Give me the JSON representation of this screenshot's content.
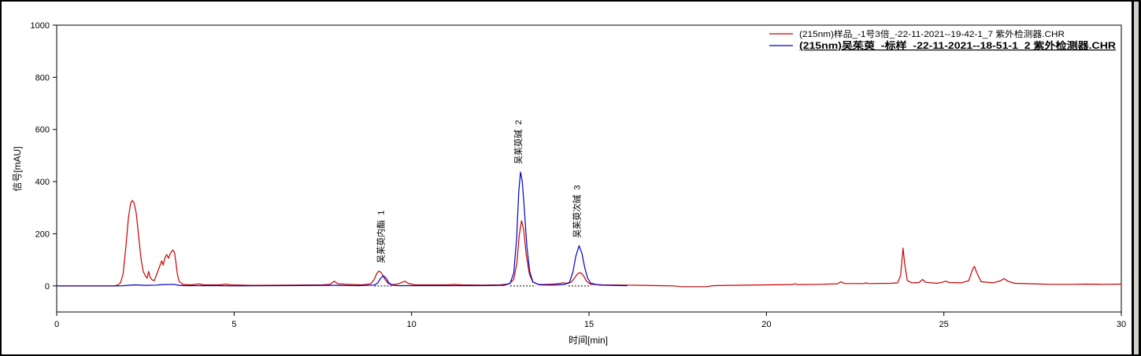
{
  "chart_data": {
    "type": "line",
    "xlabel": "时间[min]",
    "ylabel": "信号[mAU]",
    "xlim": [
      0,
      30
    ],
    "ylim": [
      -100,
      1000
    ],
    "xticks": [
      0,
      5,
      10,
      15,
      20,
      25,
      30
    ],
    "yticks": [
      1000,
      800,
      600,
      400,
      200,
      0
    ],
    "grid": false,
    "legend_position": "top-right",
    "series": [
      {
        "name": "(215nm)样品_-1号3倍_-22-11-2021--19-42-1_7 紫外检测器.CHR",
        "color": "#c80000",
        "points": [
          [
            0,
            0
          ],
          [
            1.0,
            0
          ],
          [
            1.6,
            0
          ],
          [
            1.72,
            3
          ],
          [
            1.8,
            12
          ],
          [
            1.87,
            45
          ],
          [
            1.95,
            150
          ],
          [
            2.02,
            260
          ],
          [
            2.08,
            315
          ],
          [
            2.13,
            328
          ],
          [
            2.18,
            318
          ],
          [
            2.24,
            280
          ],
          [
            2.31,
            190
          ],
          [
            2.38,
            100
          ],
          [
            2.44,
            55
          ],
          [
            2.5,
            38
          ],
          [
            2.55,
            30
          ],
          [
            2.59,
            56
          ],
          [
            2.63,
            35
          ],
          [
            2.68,
            24
          ],
          [
            2.75,
            20
          ],
          [
            2.8,
            38
          ],
          [
            2.86,
            60
          ],
          [
            2.92,
            82
          ],
          [
            2.96,
            96
          ],
          [
            3.0,
            80
          ],
          [
            3.05,
            108
          ],
          [
            3.1,
            120
          ],
          [
            3.15,
            106
          ],
          [
            3.2,
            124
          ],
          [
            3.27,
            138
          ],
          [
            3.32,
            128
          ],
          [
            3.36,
            90
          ],
          [
            3.4,
            45
          ],
          [
            3.45,
            18
          ],
          [
            3.55,
            6
          ],
          [
            3.8,
            4
          ],
          [
            4.0,
            8
          ],
          [
            4.15,
            4
          ],
          [
            4.6,
            4
          ],
          [
            4.75,
            7
          ],
          [
            4.9,
            4
          ],
          [
            5.5,
            2
          ],
          [
            6.5,
            3
          ],
          [
            7.5,
            4
          ],
          [
            7.7,
            6
          ],
          [
            7.82,
            18
          ],
          [
            7.92,
            8
          ],
          [
            8.2,
            6
          ],
          [
            8.6,
            4
          ],
          [
            8.85,
            8
          ],
          [
            8.95,
            25
          ],
          [
            9.02,
            48
          ],
          [
            9.08,
            57
          ],
          [
            9.15,
            50
          ],
          [
            9.25,
            25
          ],
          [
            9.35,
            8
          ],
          [
            9.5,
            5
          ],
          [
            9.65,
            9
          ],
          [
            9.75,
            15
          ],
          [
            9.82,
            18
          ],
          [
            9.9,
            10
          ],
          [
            10.1,
            4
          ],
          [
            11.0,
            4
          ],
          [
            11.2,
            6
          ],
          [
            11.4,
            4
          ],
          [
            12.0,
            3
          ],
          [
            12.5,
            4
          ],
          [
            12.75,
            8
          ],
          [
            12.88,
            25
          ],
          [
            12.97,
            90
          ],
          [
            13.03,
            190
          ],
          [
            13.1,
            250
          ],
          [
            13.16,
            215
          ],
          [
            13.23,
            120
          ],
          [
            13.32,
            45
          ],
          [
            13.42,
            14
          ],
          [
            13.6,
            5
          ],
          [
            13.8,
            6
          ],
          [
            14.0,
            7
          ],
          [
            14.2,
            10
          ],
          [
            14.28,
            12
          ],
          [
            14.4,
            9
          ],
          [
            14.5,
            15
          ],
          [
            14.6,
            32
          ],
          [
            14.68,
            47
          ],
          [
            14.76,
            51
          ],
          [
            14.84,
            40
          ],
          [
            14.93,
            18
          ],
          [
            15.05,
            6
          ],
          [
            15.4,
            4
          ],
          [
            16.0,
            3
          ],
          [
            16.5,
            2
          ],
          [
            17.0,
            1
          ],
          [
            17.4,
            0
          ],
          [
            17.6,
            -3
          ],
          [
            18.3,
            -3
          ],
          [
            18.5,
            1
          ],
          [
            19.0,
            2
          ],
          [
            20.0,
            4
          ],
          [
            20.7,
            5
          ],
          [
            20.8,
            8
          ],
          [
            20.9,
            5
          ],
          [
            21.5,
            6
          ],
          [
            22.0,
            8
          ],
          [
            22.1,
            16
          ],
          [
            22.2,
            9
          ],
          [
            22.75,
            9
          ],
          [
            22.8,
            12
          ],
          [
            22.85,
            9
          ],
          [
            23.5,
            10
          ],
          [
            23.7,
            12
          ],
          [
            23.78,
            40
          ],
          [
            23.85,
            145
          ],
          [
            23.9,
            80
          ],
          [
            23.97,
            20
          ],
          [
            24.1,
            12
          ],
          [
            24.3,
            13
          ],
          [
            24.4,
            25
          ],
          [
            24.48,
            14
          ],
          [
            24.8,
            10
          ],
          [
            24.95,
            14
          ],
          [
            25.05,
            18
          ],
          [
            25.15,
            13
          ],
          [
            25.5,
            12
          ],
          [
            25.7,
            20
          ],
          [
            25.8,
            60
          ],
          [
            25.86,
            75
          ],
          [
            25.93,
            50
          ],
          [
            26.05,
            16
          ],
          [
            26.4,
            12
          ],
          [
            26.6,
            20
          ],
          [
            26.7,
            28
          ],
          [
            26.8,
            18
          ],
          [
            27.0,
            10
          ],
          [
            27.5,
            8
          ],
          [
            28.0,
            6
          ],
          [
            28.6,
            6
          ],
          [
            29.0,
            7
          ],
          [
            29.5,
            6
          ],
          [
            30.0,
            7
          ]
        ]
      },
      {
        "name": "(215nm)吴茱萸_-标样_-22-11-2021--18-51-1_2 紫外检测器.CHR",
        "color": "#0000c8",
        "points": [
          [
            0,
            0
          ],
          [
            1.8,
            0
          ],
          [
            2.0,
            2
          ],
          [
            2.2,
            4
          ],
          [
            2.5,
            2
          ],
          [
            2.8,
            3
          ],
          [
            3.0,
            5
          ],
          [
            3.3,
            6
          ],
          [
            3.45,
            2
          ],
          [
            3.6,
            1
          ],
          [
            4.5,
            1
          ],
          [
            5.0,
            0
          ],
          [
            7.8,
            2
          ],
          [
            8.5,
            1
          ],
          [
            8.95,
            3
          ],
          [
            9.05,
            12
          ],
          [
            9.12,
            28
          ],
          [
            9.2,
            39
          ],
          [
            9.28,
            30
          ],
          [
            9.36,
            12
          ],
          [
            9.45,
            3
          ],
          [
            9.6,
            1
          ],
          [
            10.0,
            1
          ],
          [
            12.0,
            1
          ],
          [
            12.6,
            2
          ],
          [
            12.78,
            10
          ],
          [
            12.88,
            50
          ],
          [
            12.96,
            180
          ],
          [
            13.02,
            360
          ],
          [
            13.07,
            437
          ],
          [
            13.12,
            400
          ],
          [
            13.18,
            290
          ],
          [
            13.25,
            150
          ],
          [
            13.33,
            55
          ],
          [
            13.42,
            15
          ],
          [
            13.6,
            4
          ],
          [
            14.0,
            3
          ],
          [
            14.3,
            5
          ],
          [
            14.45,
            14
          ],
          [
            14.55,
            55
          ],
          [
            14.63,
            115
          ],
          [
            14.72,
            154
          ],
          [
            14.8,
            125
          ],
          [
            14.88,
            70
          ],
          [
            14.96,
            30
          ],
          [
            15.05,
            10
          ],
          [
            15.3,
            3
          ],
          [
            16.0,
            1
          ],
          [
            16.07,
            1
          ]
        ]
      }
    ],
    "peak_labels": [
      {
        "text": "吴茱萸内酯  1",
        "x": 9.2
      },
      {
        "text": "吴茱萸碱  2",
        "x": 13.07
      },
      {
        "text": "吴茱萸次碱  3",
        "x": 14.72
      }
    ],
    "baselines": [
      [
        8.95,
        9.45
      ],
      [
        12.78,
        13.5
      ],
      [
        14.42,
        15.05
      ]
    ]
  }
}
